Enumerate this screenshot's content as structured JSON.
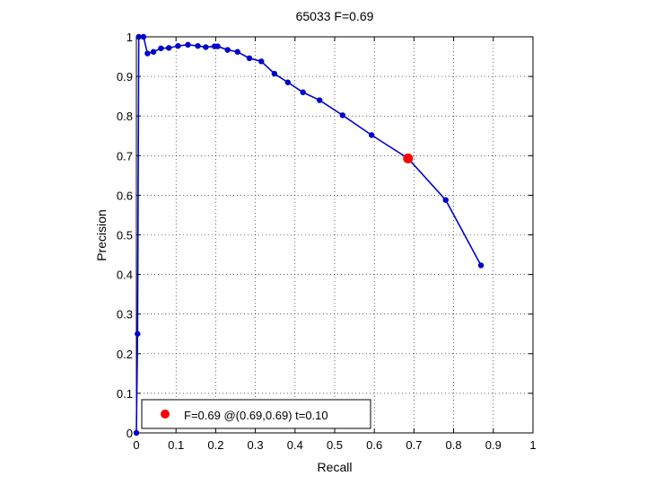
{
  "chart_data": {
    "type": "line",
    "title": "65033 F=0.69",
    "xlabel": "Recall",
    "ylabel": "Precision",
    "xlim": [
      0,
      1
    ],
    "ylim": [
      0,
      1
    ],
    "grid": true,
    "legend_position": "bottom-left",
    "x_ticks": [
      "0",
      "0.1",
      "0.2",
      "0.3",
      "0.4",
      "0.5",
      "0.6",
      "0.7",
      "0.8",
      "0.9",
      "1"
    ],
    "y_ticks": [
      "0",
      "0.1",
      "0.2",
      "0.3",
      "0.4",
      "0.5",
      "0.6",
      "0.7",
      "0.8",
      "0.9",
      "1"
    ],
    "series": [
      {
        "color": "#0000cc",
        "points": [
          [
            0.0,
            0.0
          ],
          [
            0.003,
            0.25
          ],
          [
            0.006,
            1.0
          ],
          [
            0.018,
            1.0
          ],
          [
            0.028,
            0.958
          ],
          [
            0.043,
            0.962
          ],
          [
            0.062,
            0.971
          ],
          [
            0.082,
            0.972
          ],
          [
            0.105,
            0.977
          ],
          [
            0.13,
            0.98
          ],
          [
            0.155,
            0.977
          ],
          [
            0.175,
            0.974
          ],
          [
            0.197,
            0.976
          ],
          [
            0.205,
            0.976
          ],
          [
            0.23,
            0.967
          ],
          [
            0.255,
            0.962
          ],
          [
            0.285,
            0.946
          ],
          [
            0.315,
            0.938
          ],
          [
            0.348,
            0.907
          ],
          [
            0.382,
            0.885
          ],
          [
            0.42,
            0.86
          ],
          [
            0.462,
            0.84
          ],
          [
            0.52,
            0.802
          ],
          [
            0.593,
            0.752
          ],
          [
            0.685,
            0.693
          ],
          [
            0.78,
            0.588
          ],
          [
            0.869,
            0.423
          ]
        ]
      }
    ],
    "highlight_point": {
      "x": 0.685,
      "y": 0.693,
      "color": "#ff0000"
    },
    "legend_entries": [
      "F=0.69 @(0.69,0.69) t=0.10"
    ]
  }
}
